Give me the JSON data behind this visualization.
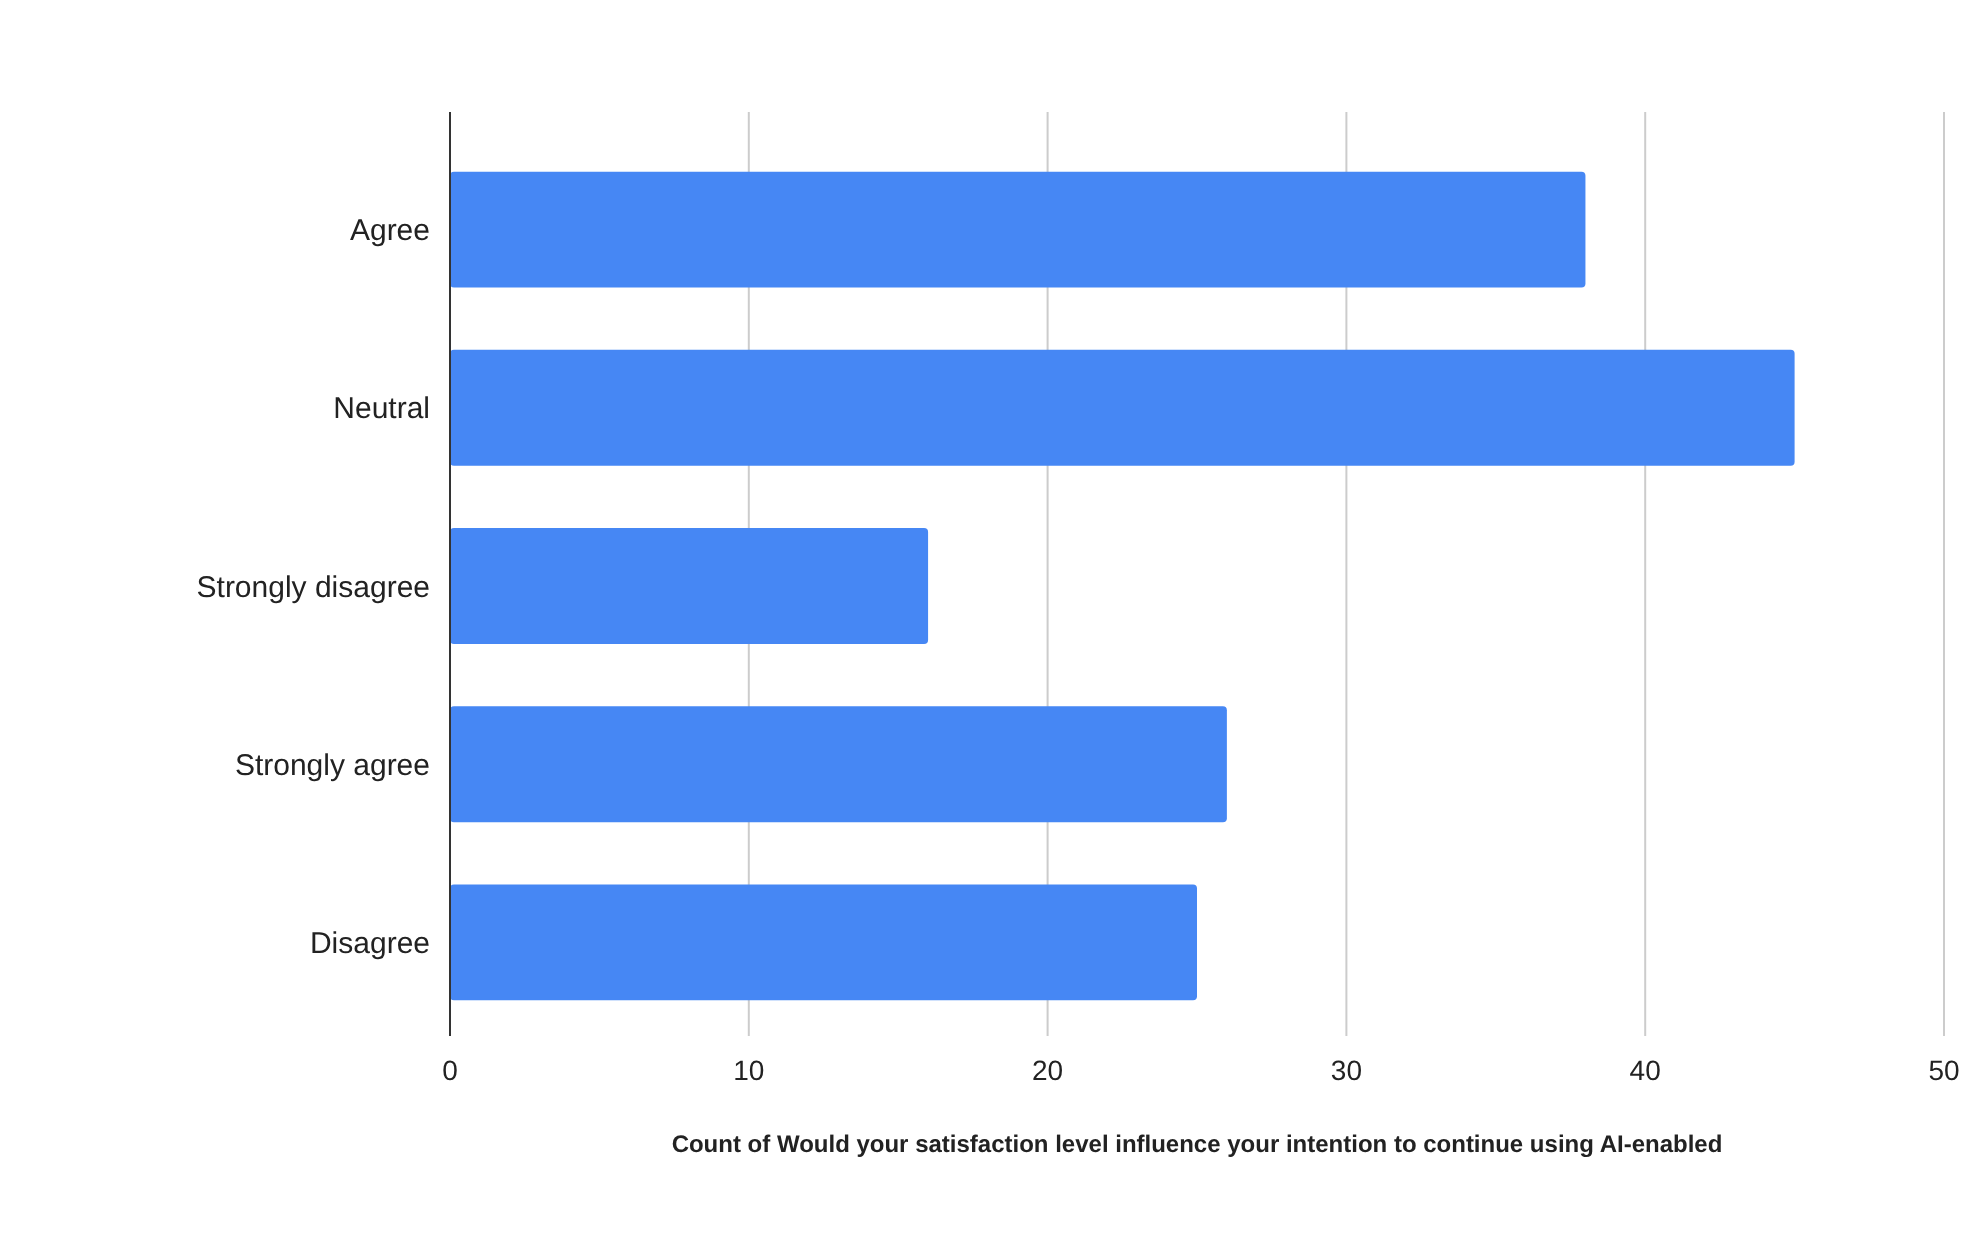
{
  "chart_data": {
    "type": "bar",
    "orientation": "horizontal",
    "categories": [
      "Agree",
      "Neutral",
      "Strongly disagree",
      "Strongly agree",
      "Disagree"
    ],
    "values": [
      38,
      45,
      16,
      26,
      25
    ],
    "color": "#4687f4",
    "xlim": [
      0,
      50
    ],
    "xticks": [
      0,
      10,
      20,
      30,
      40,
      50
    ],
    "grid": "x",
    "xlabel": "Count of Would your satisfaction level influence your intention to continue using AI-enabled"
  }
}
